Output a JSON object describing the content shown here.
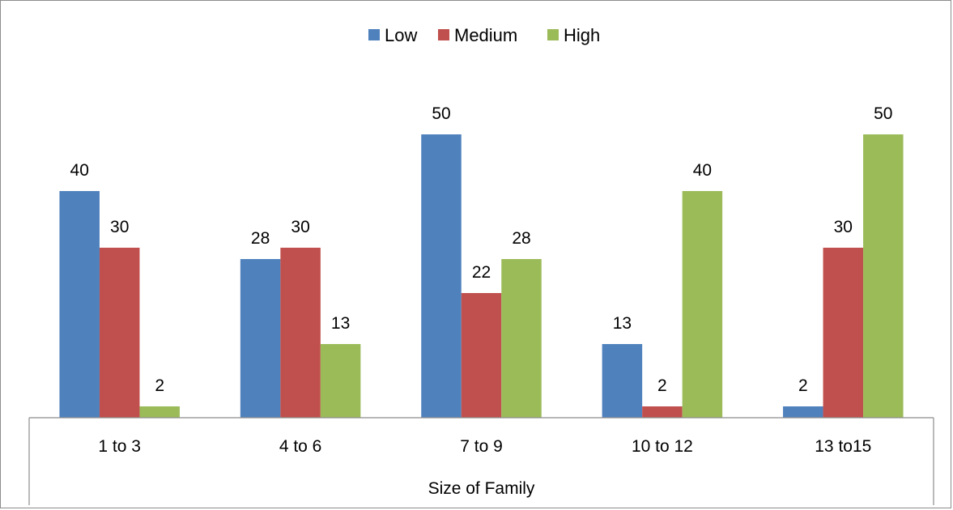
{
  "chart_data": {
    "type": "bar",
    "title": "",
    "xlabel": "Size of Family",
    "ylabel": "",
    "categories": [
      "1 to 3",
      "4 to 6",
      "7 to 9",
      "10 to 12",
      "13 to15"
    ],
    "series": [
      {
        "name": "Low",
        "color": "#4F81BD",
        "values": [
          40,
          28,
          50,
          13,
          2
        ]
      },
      {
        "name": "Medium",
        "color": "#C0504D",
        "values": [
          30,
          30,
          22,
          2,
          30
        ]
      },
      {
        "name": "High",
        "color": "#9BBB59",
        "values": [
          2,
          13,
          28,
          40,
          50
        ]
      }
    ],
    "ylim": [
      0,
      50
    ],
    "grid": false,
    "legend_position": "top-center",
    "data_labels": true
  }
}
